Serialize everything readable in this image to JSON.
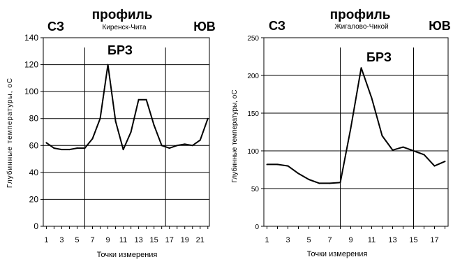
{
  "chart_data": [
    {
      "type": "line",
      "title": "профиль",
      "subtitle": "Киренск-Чита",
      "left_label": "СЗ",
      "right_label": "ЮВ",
      "zone_label": "БРЗ",
      "zone_bounds": [
        6,
        16.5
      ],
      "xlabel": "Точки измерения",
      "ylabel": "Глубинные температуры, оС",
      "xlim": [
        0.6,
        22.2
      ],
      "ylim": [
        0,
        140
      ],
      "yticks": [
        0,
        20,
        40,
        60,
        80,
        100,
        120,
        140
      ],
      "xticks": [
        1,
        3,
        5,
        7,
        9,
        11,
        13,
        15,
        17,
        19,
        21
      ],
      "grid": true,
      "series": [
        {
          "x": [
            1,
            2,
            3,
            4,
            5,
            6,
            7,
            8,
            9,
            10,
            11,
            12,
            13,
            14,
            15,
            16,
            17,
            18,
            19,
            20,
            21,
            22
          ],
          "values": [
            62,
            58,
            57,
            57,
            58,
            58,
            65,
            80,
            120,
            78,
            57,
            70,
            94,
            94,
            75,
            60,
            58,
            60,
            61,
            60,
            64,
            80
          ]
        }
      ]
    },
    {
      "type": "line",
      "title": "профиль",
      "subtitle": "Жигалово-Чикой",
      "left_label": "СЗ",
      "right_label": "ЮВ",
      "zone_label": "БРЗ",
      "zone_bounds": [
        8,
        15
      ],
      "xlabel": "Точки измерения",
      "ylabel": "Глубинные температуры, оС",
      "xlim": [
        0.7,
        18.3
      ],
      "ylim": [
        0,
        250
      ],
      "yticks": [
        0,
        50,
        100,
        150,
        200,
        250
      ],
      "xticks": [
        1,
        3,
        5,
        7,
        9,
        11,
        13,
        15,
        17
      ],
      "grid": true,
      "series": [
        {
          "x": [
            1,
            2,
            3,
            4,
            5,
            6,
            7,
            8,
            9,
            10,
            11,
            12,
            13,
            14,
            15,
            16,
            17,
            18
          ],
          "values": [
            82,
            82,
            80,
            70,
            62,
            57,
            57,
            58,
            130,
            210,
            170,
            120,
            101,
            105,
            100,
            95,
            80,
            86
          ]
        }
      ]
    }
  ]
}
